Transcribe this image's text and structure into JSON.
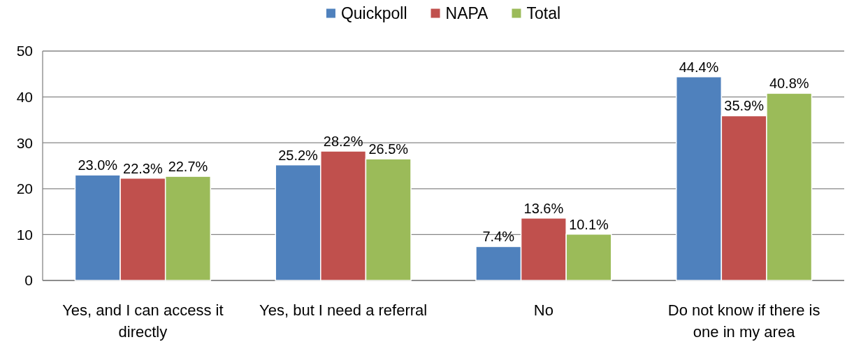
{
  "chart_data": {
    "type": "bar",
    "categories": [
      "Yes, and I can access it directly",
      "Yes, but I need a referral",
      "No",
      "Do not know if there is one in my area"
    ],
    "series": [
      {
        "name": "Quickpoll",
        "color": "#4f81bd",
        "values": [
          23.0,
          25.2,
          7.4,
          44.4
        ],
        "value_labels": [
          "23.0%",
          "25.2%",
          "7.4%",
          "44.4%"
        ]
      },
      {
        "name": "NAPA",
        "color": "#c0504d",
        "values": [
          22.3,
          28.2,
          13.6,
          35.9
        ],
        "value_labels": [
          "22.3%",
          "28.2%",
          "13.6%",
          "35.9%"
        ]
      },
      {
        "name": "Total",
        "color": "#9bbb59",
        "values": [
          22.7,
          26.5,
          10.1,
          40.8
        ],
        "value_labels": [
          "22.7%",
          "26.5%",
          "10.1%",
          "40.8%"
        ]
      }
    ],
    "ylim": [
      0,
      50
    ],
    "yticks": [
      0,
      10,
      20,
      30,
      40,
      50
    ],
    "grid": "y",
    "legend": "top"
  }
}
